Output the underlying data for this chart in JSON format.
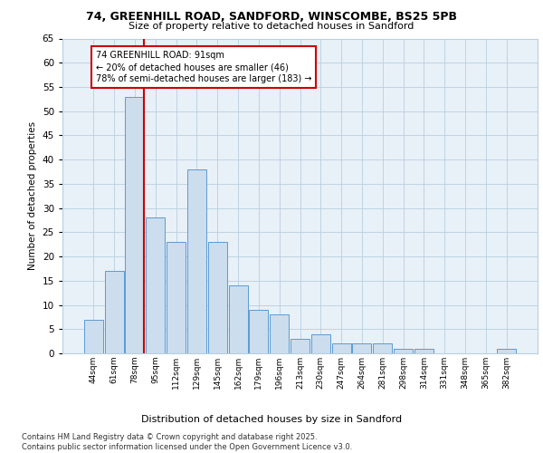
{
  "title1": "74, GREENHILL ROAD, SANDFORD, WINSCOMBE, BS25 5PB",
  "title2": "Size of property relative to detached houses in Sandford",
  "xlabel": "Distribution of detached houses by size in Sandford",
  "ylabel": "Number of detached properties",
  "categories": [
    "44sqm",
    "61sqm",
    "78sqm",
    "95sqm",
    "112sqm",
    "129sqm",
    "145sqm",
    "162sqm",
    "179sqm",
    "196sqm",
    "213sqm",
    "230sqm",
    "247sqm",
    "264sqm",
    "281sqm",
    "298sqm",
    "314sqm",
    "331sqm",
    "348sqm",
    "365sqm",
    "382sqm"
  ],
  "values": [
    7,
    17,
    53,
    28,
    23,
    38,
    23,
    14,
    9,
    8,
    3,
    4,
    2,
    2,
    2,
    1,
    1,
    0,
    0,
    0,
    1
  ],
  "bar_color": "#ccdded",
  "bar_edge_color": "#5b9bd5",
  "line_color": "#cc0000",
  "annotation_text": "74 GREENHILL ROAD: 91sqm\n← 20% of detached houses are smaller (46)\n78% of semi-detached houses are larger (183) →",
  "annotation_box_color": "#ffffff",
  "annotation_box_edge": "#cc0000",
  "footer": "Contains HM Land Registry data © Crown copyright and database right 2025.\nContains public sector information licensed under the Open Government Licence v3.0.",
  "ylim": [
    0,
    65
  ],
  "yticks": [
    0,
    5,
    10,
    15,
    20,
    25,
    30,
    35,
    40,
    45,
    50,
    55,
    60,
    65
  ],
  "plot_bg": "#e8f0f8",
  "grid_color": "#b8cfe0"
}
